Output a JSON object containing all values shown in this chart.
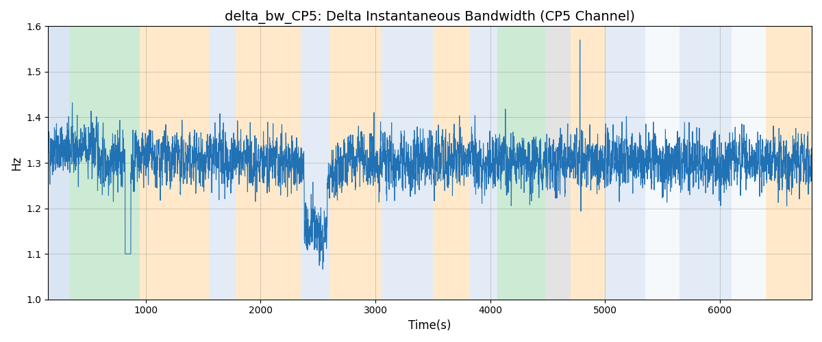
{
  "title": "delta_bw_CP5: Delta Instantaneous Bandwidth (CP5 Channel)",
  "xlabel": "Time(s)",
  "ylabel": "Hz",
  "ylim": [
    1.0,
    1.6
  ],
  "xlim": [
    150,
    6800
  ],
  "figsize": [
    12.0,
    5.0
  ],
  "dpi": 100,
  "line_color": "#2171b5",
  "line_width": 0.8,
  "background_bands": [
    {
      "xmin": 150,
      "xmax": 330,
      "color": "#aec6e8",
      "alpha": 0.45
    },
    {
      "xmin": 330,
      "xmax": 950,
      "color": "#90d4a0",
      "alpha": 0.45
    },
    {
      "xmin": 950,
      "xmax": 1200,
      "color": "#ffd8a0",
      "alpha": 0.55
    },
    {
      "xmin": 1200,
      "xmax": 1550,
      "color": "#ffd8a0",
      "alpha": 0.55
    },
    {
      "xmin": 1550,
      "xmax": 1780,
      "color": "#aec6e8",
      "alpha": 0.35
    },
    {
      "xmin": 1780,
      "xmax": 2350,
      "color": "#ffd8a0",
      "alpha": 0.55
    },
    {
      "xmin": 2350,
      "xmax": 2600,
      "color": "#aec6e8",
      "alpha": 0.35
    },
    {
      "xmin": 2600,
      "xmax": 3050,
      "color": "#ffd8a0",
      "alpha": 0.55
    },
    {
      "xmin": 3050,
      "xmax": 3500,
      "color": "#aec6e8",
      "alpha": 0.35
    },
    {
      "xmin": 3500,
      "xmax": 3820,
      "color": "#ffd8a0",
      "alpha": 0.55
    },
    {
      "xmin": 3820,
      "xmax": 4060,
      "color": "#aec6e8",
      "alpha": 0.35
    },
    {
      "xmin": 4060,
      "xmax": 4480,
      "color": "#90d4a0",
      "alpha": 0.45
    },
    {
      "xmin": 4480,
      "xmax": 4700,
      "color": "#b0b0b0",
      "alpha": 0.35
    },
    {
      "xmin": 4700,
      "xmax": 5000,
      "color": "#ffd8a0",
      "alpha": 0.55
    },
    {
      "xmin": 5000,
      "xmax": 5350,
      "color": "#aec6e8",
      "alpha": 0.35
    },
    {
      "xmin": 5350,
      "xmax": 5650,
      "color": "#aec6e8",
      "alpha": 0.1
    },
    {
      "xmin": 5650,
      "xmax": 6100,
      "color": "#aec6e8",
      "alpha": 0.35
    },
    {
      "xmin": 6100,
      "xmax": 6400,
      "color": "#aec6e8",
      "alpha": 0.1
    },
    {
      "xmin": 6400,
      "xmax": 6800,
      "color": "#ffd8a0",
      "alpha": 0.55
    }
  ],
  "seed": 42,
  "n_points": 6650,
  "signal_mean": 1.305,
  "signal_std": 0.055,
  "tick_fontsize": 10,
  "label_fontsize": 12,
  "title_fontsize": 14
}
